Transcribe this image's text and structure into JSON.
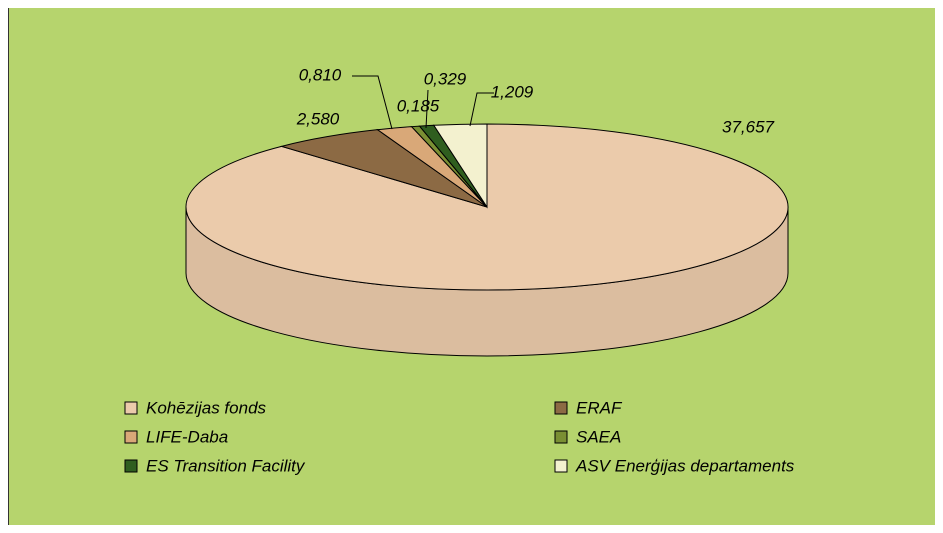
{
  "chart_data": {
    "type": "pie3d",
    "categories": [
      "Kohēzijas fonds",
      "ERAF",
      "LIFE-Daba",
      "SAEA",
      "ES Transition Facility",
      "ASV Enerģijas departaments"
    ],
    "values": [
      37.657,
      2.58,
      0.81,
      0.185,
      0.329,
      1.209
    ],
    "value_labels": [
      "37,657",
      "2,580",
      "0,810",
      "0,185",
      "0,329",
      "1,209"
    ],
    "colors": [
      "#ebcbab",
      "#8c6a44",
      "#d9a878",
      "#7a8f33",
      "#2f5e1f",
      "#f3f1cf"
    ]
  }
}
